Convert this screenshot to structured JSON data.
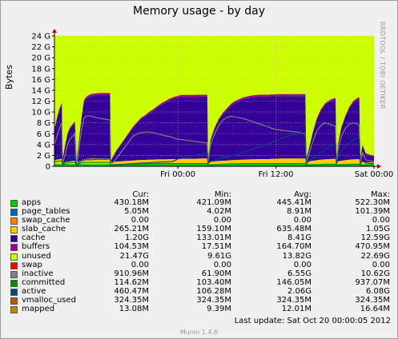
{
  "title": "Memory usage - by day",
  "watermark": "RRDTOOL / TOBI OETIKER",
  "footer": "Munin 1.4.6",
  "last_update": "Last update:  Sat Oct 20 00:00:05 2012",
  "colors": {
    "plot_bg": "#ccff00",
    "apps": "#00cc00",
    "page_tables": "#0066b3",
    "swap_cache": "#ff8000",
    "slab_cache": "#ffcc00",
    "cache": "#330099",
    "buffers": "#990099",
    "unused": "#ccff00",
    "swap": "#ff0000",
    "inactive": "#808080",
    "committed": "#008f00",
    "active": "#00487d",
    "vmalloc_used": "#b35a00",
    "mapped": "#b38f00"
  },
  "legend": {
    "headers": {
      "cur": "Cur:",
      "min": "Min:",
      "avg": "Avg:",
      "max": "Max:"
    },
    "rows": [
      {
        "name": "apps",
        "color": "#00cc00",
        "cur": "430.18M",
        "min": "421.09M",
        "avg": "445.41M",
        "max": "522.30M"
      },
      {
        "name": "page_tables",
        "color": "#0066b3",
        "cur": "5.05M",
        "min": "4.02M",
        "avg": "8.91M",
        "max": "101.39M"
      },
      {
        "name": "swap_cache",
        "color": "#ff8000",
        "cur": "0.00",
        "min": "0.00",
        "avg": "0.00",
        "max": "0.00"
      },
      {
        "name": "slab_cache",
        "color": "#ffcc00",
        "cur": "265.21M",
        "min": "159.10M",
        "avg": "635.48M",
        "max": "1.05G"
      },
      {
        "name": "cache",
        "color": "#330099",
        "cur": "1.20G",
        "min": "133.01M",
        "avg": "8.41G",
        "max": "12.59G"
      },
      {
        "name": "buffers",
        "color": "#990099",
        "cur": "104.53M",
        "min": "17.51M",
        "avg": "164.70M",
        "max": "470.95M"
      },
      {
        "name": "unused",
        "color": "#ccff00",
        "cur": "21.47G",
        "min": "9.61G",
        "avg": "13.82G",
        "max": "22.69G"
      },
      {
        "name": "swap",
        "color": "#ff0000",
        "cur": "0.00",
        "min": "0.00",
        "avg": "0.00",
        "max": "0.00"
      },
      {
        "name": "inactive",
        "color": "#808080",
        "cur": "910.96M",
        "min": "61.90M",
        "avg": "6.55G",
        "max": "10.62G"
      },
      {
        "name": "committed",
        "color": "#008f00",
        "cur": "114.62M",
        "min": "103.40M",
        "avg": "146.05M",
        "max": "937.07M"
      },
      {
        "name": "active",
        "color": "#00487d",
        "cur": "460.47M",
        "min": "106.28M",
        "avg": "2.06G",
        "max": "6.08G"
      },
      {
        "name": "vmalloc_used",
        "color": "#b35a00",
        "cur": "324.35M",
        "min": "324.35M",
        "avg": "324.35M",
        "max": "324.35M"
      },
      {
        "name": "mapped",
        "color": "#b38f00",
        "cur": "13.08M",
        "min": "9.39M",
        "avg": "12.01M",
        "max": "16.64M"
      }
    ]
  },
  "chart_data": {
    "type": "area",
    "title": "Memory usage - by day",
    "ylabel": "Bytes",
    "ylim": [
      0,
      24
    ],
    "y_unit": "G",
    "yticks": [
      {
        "v": 0,
        "label": "0"
      },
      {
        "v": 2,
        "label": "2 G"
      },
      {
        "v": 4,
        "label": "4 G"
      },
      {
        "v": 6,
        "label": "6 G"
      },
      {
        "v": 8,
        "label": "8 G"
      },
      {
        "v": 10,
        "label": "10 G"
      },
      {
        "v": 12,
        "label": "12 G"
      },
      {
        "v": 14,
        "label": "14 G"
      },
      {
        "v": 16,
        "label": "16 G"
      },
      {
        "v": 18,
        "label": "18 G"
      },
      {
        "v": 20,
        "label": "20 G"
      },
      {
        "v": 22,
        "label": "22 G"
      },
      {
        "v": 24,
        "label": "24 G"
      }
    ],
    "xlim": [
      -15.1,
      24
    ],
    "x_unit": "hours relative to Fri 00:00",
    "xticks": [
      {
        "v": 0,
        "label": "Fri 00:00"
      },
      {
        "v": 12,
        "label": "Fri 12:00"
      },
      {
        "v": 24,
        "label": "Sat 00:00"
      }
    ],
    "x": [
      -15.1,
      -14.8,
      -14.5,
      -14.2,
      -14.1,
      -13.8,
      -13.5,
      -13.2,
      -12.9,
      -12.6,
      -12.4,
      -12.2,
      -12.0,
      -11.8,
      -11.6,
      -11.5,
      -11.3,
      -11.0,
      -10.5,
      -10.0,
      -9.5,
      -9.0,
      -8.6,
      -8.3,
      -8.2,
      -8.0,
      -7.5,
      -7.0,
      -6.5,
      -6.0,
      -5.5,
      -5.0,
      -4.5,
      -4.0,
      -3.5,
      -3.0,
      -2.5,
      -2.0,
      -1.5,
      -1.0,
      -0.6,
      -0.5,
      -0.2,
      0.0,
      0.5,
      1.0,
      2.0,
      3.0,
      3.6,
      3.7,
      3.8,
      4.0,
      4.5,
      5.0,
      5.5,
      6.0,
      6.5,
      7.0,
      8.0,
      9.0,
      10.0,
      11.0,
      11.5,
      12.0,
      12.5,
      13.0,
      14.0,
      15.0,
      15.3,
      15.6,
      15.7,
      16.0,
      16.5,
      17.0,
      17.5,
      18.0,
      18.5,
      19.0,
      19.3,
      19.4,
      19.6,
      20.0,
      20.5,
      21.0,
      21.5,
      22.0,
      22.2,
      22.3,
      22.6,
      23.0,
      23.5,
      24.0
    ],
    "series": [
      {
        "name": "apps",
        "values": [
          0.43,
          0.43,
          0.43,
          0.43,
          0.43,
          0.43,
          0.43,
          0.43,
          0.43,
          0.43,
          0.43,
          0.43,
          0.43,
          0.43,
          0.43,
          0.43,
          0.43,
          0.43,
          0.43,
          0.43,
          0.43,
          0.43,
          0.43,
          0.43,
          0.43,
          0.43,
          0.43,
          0.43,
          0.43,
          0.43,
          0.43,
          0.43,
          0.43,
          0.43,
          0.43,
          0.43,
          0.43,
          0.43,
          0.43,
          0.43,
          0.43,
          0.43,
          0.43,
          0.43,
          0.43,
          0.43,
          0.43,
          0.43,
          0.43,
          0.43,
          0.43,
          0.43,
          0.43,
          0.43,
          0.43,
          0.43,
          0.43,
          0.43,
          0.43,
          0.43,
          0.43,
          0.43,
          0.43,
          0.43,
          0.43,
          0.43,
          0.43,
          0.43,
          0.43,
          0.43,
          0.43,
          0.43,
          0.43,
          0.43,
          0.43,
          0.43,
          0.43,
          0.43,
          0.43,
          0.43,
          0.43,
          0.43,
          0.43,
          0.43,
          0.43,
          0.43,
          0.43,
          0.43,
          0.43,
          0.43,
          0.43,
          0.43
        ]
      },
      {
        "name": "slab_cache",
        "values": [
          0.7,
          0.8,
          0.9,
          0.95,
          0.2,
          0.3,
          0.4,
          0.5,
          0.55,
          0.6,
          0.2,
          0.4,
          0.55,
          0.7,
          0.8,
          0.85,
          0.9,
          0.95,
          1.0,
          1.0,
          1.0,
          1.0,
          1.0,
          1.0,
          0.3,
          0.35,
          0.45,
          0.5,
          0.55,
          0.6,
          0.65,
          0.7,
          0.75,
          0.75,
          0.8,
          0.8,
          0.85,
          0.85,
          0.85,
          0.9,
          0.9,
          0.9,
          0.9,
          0.9,
          0.95,
          0.95,
          0.95,
          1.0,
          1.0,
          0.2,
          0.3,
          0.4,
          0.5,
          0.55,
          0.6,
          0.65,
          0.7,
          0.75,
          0.8,
          0.85,
          0.9,
          0.9,
          0.95,
          0.95,
          1.0,
          1.0,
          1.0,
          1.0,
          1.0,
          1.0,
          0.3,
          0.5,
          0.6,
          0.7,
          0.8,
          0.85,
          0.9,
          0.95,
          0.95,
          0.3,
          0.5,
          0.6,
          0.7,
          0.8,
          0.85,
          0.9,
          0.9,
          0.3,
          0.4,
          0.35,
          0.3,
          0.27
        ]
      },
      {
        "name": "cache",
        "values": [
          5.5,
          7.5,
          9.0,
          10.0,
          0.5,
          3.0,
          5.0,
          6.0,
          6.5,
          7.0,
          0.3,
          2.5,
          5.0,
          7.5,
          9.5,
          10.5,
          11.0,
          11.3,
          11.5,
          11.6,
          11.6,
          11.6,
          11.6,
          11.6,
          0.2,
          0.8,
          2.0,
          3.0,
          4.0,
          5.0,
          6.0,
          6.8,
          7.5,
          8.0,
          8.5,
          9.0,
          9.5,
          10.0,
          10.4,
          10.8,
          11.0,
          11.1,
          11.2,
          11.3,
          11.4,
          11.4,
          11.4,
          11.4,
          11.4,
          0.5,
          2.0,
          4.0,
          6.0,
          7.5,
          8.5,
          9.3,
          10.0,
          10.5,
          11.1,
          11.4,
          11.5,
          11.5,
          11.5,
          11.5,
          11.5,
          11.5,
          11.5,
          11.5,
          11.5,
          11.5,
          0.5,
          2.0,
          5.0,
          7.5,
          9.0,
          10.0,
          10.5,
          10.8,
          10.9,
          0.5,
          3.0,
          6.0,
          8.0,
          9.5,
          10.5,
          11.0,
          11.1,
          0.5,
          3.0,
          1.5,
          1.3,
          1.2
        ]
      },
      {
        "name": "buffers",
        "values": [
          0.2,
          0.2,
          0.25,
          0.3,
          0.1,
          0.15,
          0.2,
          0.25,
          0.25,
          0.3,
          0.05,
          0.1,
          0.15,
          0.2,
          0.25,
          0.3,
          0.3,
          0.35,
          0.4,
          0.4,
          0.45,
          0.45,
          0.45,
          0.45,
          0.02,
          0.05,
          0.1,
          0.1,
          0.15,
          0.15,
          0.2,
          0.2,
          0.25,
          0.25,
          0.3,
          0.3,
          0.3,
          0.35,
          0.35,
          0.35,
          0.35,
          0.35,
          0.35,
          0.35,
          0.35,
          0.35,
          0.35,
          0.35,
          0.35,
          0.05,
          0.1,
          0.15,
          0.2,
          0.25,
          0.3,
          0.3,
          0.35,
          0.35,
          0.35,
          0.35,
          0.35,
          0.35,
          0.35,
          0.35,
          0.35,
          0.35,
          0.35,
          0.35,
          0.35,
          0.35,
          0.05,
          0.1,
          0.15,
          0.2,
          0.25,
          0.3,
          0.3,
          0.3,
          0.3,
          0.05,
          0.1,
          0.15,
          0.2,
          0.25,
          0.3,
          0.3,
          0.3,
          0.05,
          0.1,
          0.1,
          0.1,
          0.1
        ]
      }
    ],
    "lines": [
      {
        "name": "inactive",
        "values": [
          4.0,
          5.5,
          7.0,
          8.0,
          0.5,
          2.0,
          4.0,
          5.0,
          5.5,
          6.0,
          0.3,
          2.0,
          4.5,
          6.5,
          8.0,
          8.8,
          9.2,
          9.3,
          9.2,
          9.0,
          8.8,
          8.7,
          8.6,
          8.5,
          0.2,
          0.5,
          1.5,
          2.5,
          3.5,
          4.5,
          5.5,
          6.0,
          6.2,
          6.3,
          6.3,
          6.2,
          6.0,
          5.8,
          5.6,
          5.5,
          5.3,
          5.2,
          5.1,
          5.0,
          4.9,
          4.8,
          4.6,
          4.4,
          4.3,
          0.5,
          2.0,
          4.0,
          6.0,
          7.5,
          8.5,
          9.0,
          9.2,
          9.1,
          8.8,
          8.3,
          7.8,
          7.3,
          7.0,
          6.8,
          6.7,
          6.6,
          6.4,
          6.2,
          6.0,
          6.0,
          0.5,
          2.0,
          4.5,
          6.5,
          7.5,
          8.0,
          7.8,
          7.5,
          7.4,
          0.5,
          3.0,
          5.5,
          7.0,
          7.8,
          8.0,
          7.8,
          7.6,
          0.5,
          2.5,
          1.2,
          1.0,
          0.9
        ]
      },
      {
        "name": "active",
        "values": [
          1.2,
          1.6,
          2.0,
          2.2,
          0.3,
          0.8,
          1.2,
          1.5,
          1.6,
          1.7,
          0.2,
          0.5,
          0.8,
          1.0,
          1.1,
          1.15,
          1.2,
          1.2,
          1.2,
          1.3,
          1.3,
          1.3,
          1.3,
          1.35,
          0.15,
          0.2,
          0.3,
          0.35,
          0.4,
          0.45,
          0.5,
          0.55,
          0.6,
          0.6,
          0.65,
          0.7,
          0.75,
          0.8,
          0.8,
          0.85,
          0.9,
          1.0,
          1.2,
          1.35,
          1.5,
          1.7,
          2.0,
          2.3,
          2.5,
          0.5,
          0.7,
          0.9,
          1.1,
          1.3,
          1.5,
          1.7,
          1.9,
          2.1,
          2.6,
          3.1,
          3.6,
          4.1,
          4.4,
          4.7,
          5.0,
          5.3,
          5.8,
          6.0,
          6.1,
          6.2,
          0.4,
          0.9,
          1.5,
          2.0,
          2.5,
          3.0,
          3.5,
          4.0,
          4.2,
          0.4,
          1.5,
          2.8,
          3.8,
          4.4,
          4.9,
          5.2,
          5.3,
          0.4,
          1.0,
          0.6,
          0.5,
          0.45
        ]
      },
      {
        "name": "committed",
        "values": [
          0.9,
          0.9,
          0.95,
          0.95,
          0.2,
          0.4,
          0.6,
          0.7,
          0.7,
          0.75,
          0.15,
          0.3,
          0.5,
          0.6,
          0.65,
          0.7,
          0.7,
          0.7,
          0.7,
          0.7,
          0.7,
          0.7,
          0.7,
          0.7,
          0.1,
          0.15,
          0.2,
          0.25,
          0.3,
          0.3,
          0.35,
          0.35,
          0.4,
          0.4,
          0.45,
          0.45,
          0.5,
          0.5,
          0.5,
          0.5,
          0.5,
          0.5,
          0.5,
          0.5,
          0.5,
          0.5,
          0.5,
          0.5,
          0.5,
          0.15,
          0.2,
          0.25,
          0.3,
          0.35,
          0.4,
          0.4,
          0.45,
          0.45,
          0.5,
          0.5,
          0.5,
          0.5,
          0.5,
          0.5,
          0.5,
          0.5,
          0.5,
          0.5,
          0.5,
          0.5,
          0.15,
          0.2,
          0.25,
          0.3,
          0.35,
          0.4,
          0.4,
          0.4,
          0.4,
          0.15,
          0.25,
          0.3,
          0.35,
          0.4,
          0.4,
          0.4,
          0.4,
          0.15,
          0.2,
          0.15,
          0.12,
          0.11
        ]
      }
    ]
  }
}
